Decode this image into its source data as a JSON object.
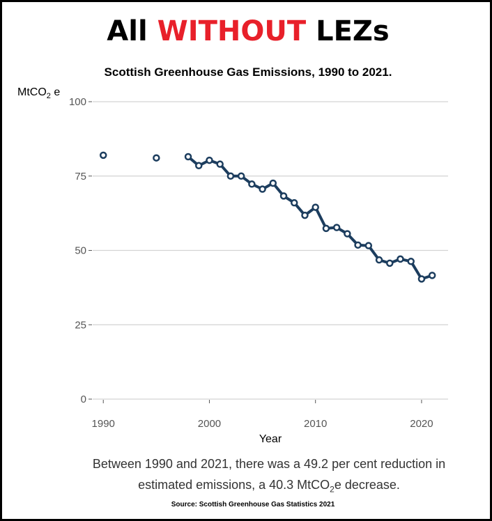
{
  "headline": {
    "part1": "All",
    "part2": "WITHOUT",
    "part3": "LEZs",
    "accent_color": "#e8202a"
  },
  "chart_data": {
    "type": "line",
    "title": "Scottish Greenhouse Gas Emissions, 1990 to 2021.",
    "ylabel_main": "MtCO",
    "ylabel_sub": "2",
    "ylabel_tail": " e",
    "xlabel": "Year",
    "x_ticks": [
      1990,
      2000,
      2010,
      2020
    ],
    "y_ticks": [
      0,
      25,
      50,
      75,
      100
    ],
    "xlim": [
      1989,
      2022.5
    ],
    "ylim": [
      0,
      100
    ],
    "grid": true,
    "line_color": "#1c3d5e",
    "series": [
      {
        "x": [
          1990,
          1995,
          1998,
          1999,
          2000,
          2001,
          2002,
          2003,
          2004,
          2005,
          2006,
          2007,
          2008,
          2009,
          2010,
          2011,
          2012,
          2013,
          2014,
          2015,
          2016,
          2017,
          2018,
          2019,
          2020,
          2021
        ],
        "y": [
          82.0,
          81.1,
          81.5,
          78.5,
          80.3,
          79.0,
          75.0,
          75.0,
          72.3,
          70.6,
          72.6,
          68.3,
          66.0,
          61.8,
          64.5,
          57.4,
          57.7,
          55.6,
          51.8,
          51.6,
          46.8,
          45.7,
          47.1,
          46.3,
          40.4,
          41.6
        ]
      }
    ]
  },
  "note": {
    "line1": "Between 1990 and 2021, there was a 49.2 per cent reduction in",
    "line2_pre": "estimated  emissions, a 40.3 MtCO",
    "line2_sub": "2",
    "line2_post": "e decrease."
  },
  "source": "Source: Scottish Greenhouse Gas Statistics 2021"
}
